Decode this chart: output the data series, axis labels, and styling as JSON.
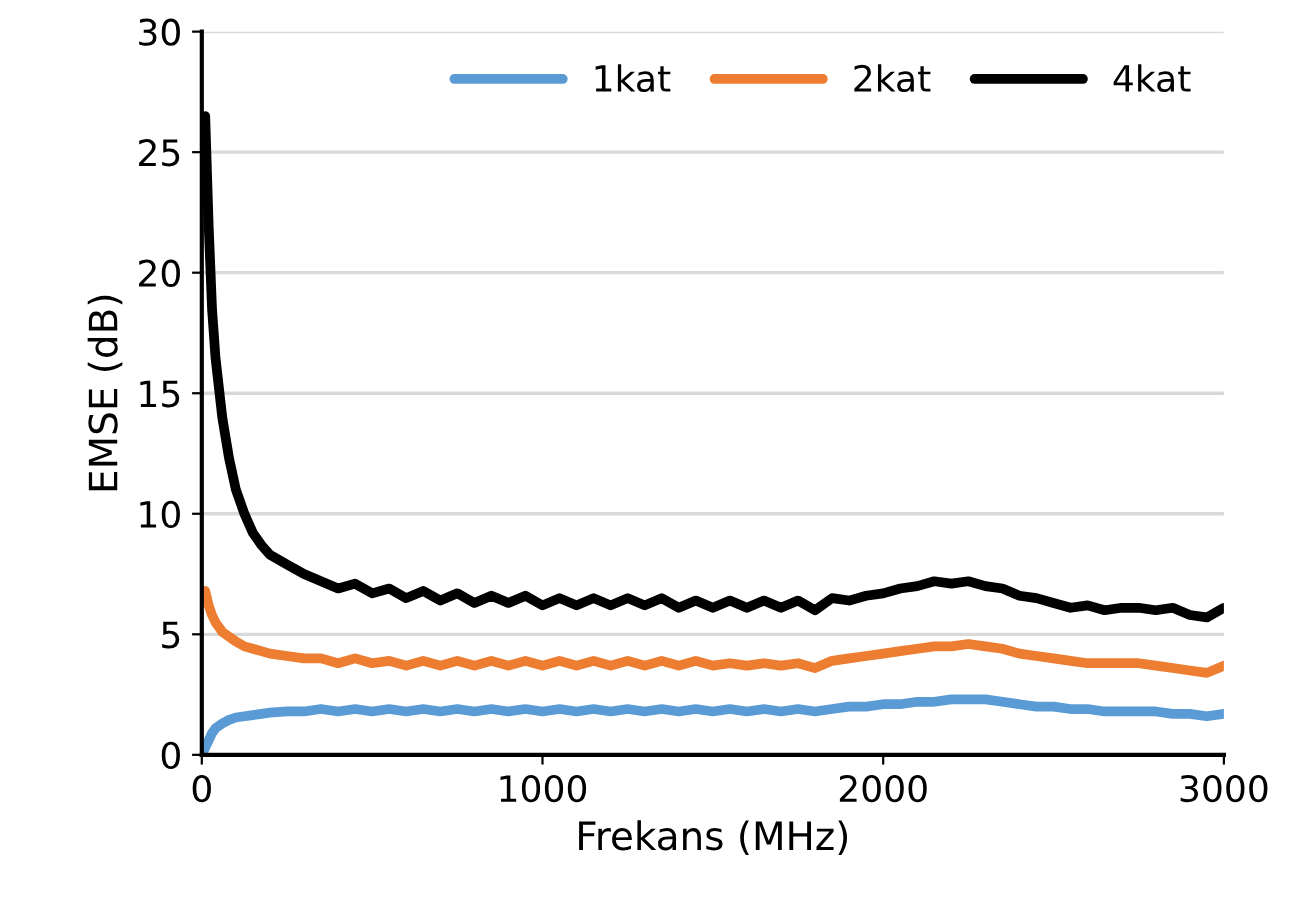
{
  "chart_data": {
    "type": "line",
    "xlabel": "Frekans (MHz)",
    "ylabel": "EMSE (dB)",
    "x": [
      0,
      10,
      20,
      30,
      40,
      60,
      80,
      100,
      125,
      150,
      175,
      200,
      250,
      300,
      350,
      400,
      450,
      500,
      550,
      600,
      650,
      700,
      750,
      800,
      850,
      900,
      950,
      1000,
      1050,
      1100,
      1150,
      1200,
      1250,
      1300,
      1350,
      1400,
      1450,
      1500,
      1550,
      1600,
      1650,
      1700,
      1750,
      1800,
      1850,
      1900,
      1950,
      2000,
      2050,
      2100,
      2150,
      2200,
      2250,
      2300,
      2350,
      2400,
      2450,
      2500,
      2550,
      2600,
      2650,
      2700,
      2750,
      2800,
      2850,
      2900,
      2950,
      3000
    ],
    "series": [
      {
        "name": "1kat",
        "color": "#5b9bd5",
        "values": [
          0,
          0.3,
          0.6,
          0.9,
          1.1,
          1.3,
          1.45,
          1.55,
          1.6,
          1.65,
          1.7,
          1.75,
          1.8,
          1.8,
          1.9,
          1.8,
          1.9,
          1.8,
          1.9,
          1.8,
          1.9,
          1.8,
          1.9,
          1.8,
          1.9,
          1.8,
          1.9,
          1.8,
          1.9,
          1.8,
          1.9,
          1.8,
          1.9,
          1.8,
          1.9,
          1.8,
          1.9,
          1.8,
          1.9,
          1.8,
          1.9,
          1.8,
          1.9,
          1.8,
          1.9,
          2.0,
          2.0,
          2.1,
          2.1,
          2.2,
          2.2,
          2.3,
          2.3,
          2.3,
          2.2,
          2.1,
          2.0,
          2.0,
          1.9,
          1.9,
          1.8,
          1.8,
          1.8,
          1.8,
          1.7,
          1.7,
          1.6,
          1.7
        ]
      },
      {
        "name": "2kat",
        "color": "#ed7d31",
        "values": [
          null,
          6.8,
          6.2,
          5.8,
          5.5,
          5.1,
          4.9,
          4.7,
          4.5,
          4.4,
          4.3,
          4.2,
          4.1,
          4.0,
          4.0,
          3.8,
          4.0,
          3.8,
          3.9,
          3.7,
          3.9,
          3.7,
          3.9,
          3.7,
          3.9,
          3.7,
          3.9,
          3.7,
          3.9,
          3.7,
          3.9,
          3.7,
          3.9,
          3.7,
          3.9,
          3.7,
          3.9,
          3.7,
          3.8,
          3.7,
          3.8,
          3.7,
          3.8,
          3.6,
          3.9,
          4.0,
          4.1,
          4.2,
          4.3,
          4.4,
          4.5,
          4.5,
          4.6,
          4.5,
          4.4,
          4.2,
          4.1,
          4.0,
          3.9,
          3.8,
          3.8,
          3.8,
          3.8,
          3.7,
          3.6,
          3.5,
          3.4,
          3.7
        ]
      },
      {
        "name": "4kat",
        "color": "#000000",
        "values": [
          null,
          26.5,
          22,
          18.5,
          16.5,
          14,
          12.3,
          11,
          10,
          9.2,
          8.7,
          8.3,
          7.9,
          7.5,
          7.2,
          6.9,
          7.1,
          6.7,
          6.9,
          6.5,
          6.8,
          6.4,
          6.7,
          6.3,
          6.6,
          6.3,
          6.6,
          6.2,
          6.5,
          6.2,
          6.5,
          6.2,
          6.5,
          6.2,
          6.5,
          6.1,
          6.4,
          6.1,
          6.4,
          6.1,
          6.4,
          6.1,
          6.4,
          6.0,
          6.5,
          6.4,
          6.6,
          6.7,
          6.9,
          7.0,
          7.2,
          7.1,
          7.2,
          7.0,
          6.9,
          6.6,
          6.5,
          6.3,
          6.1,
          6.2,
          6.0,
          6.1,
          6.1,
          6.0,
          6.1,
          5.8,
          5.7,
          6.1
        ]
      }
    ],
    "xlim": [
      0,
      3000
    ],
    "xticks": [
      0,
      1000,
      2000,
      3000
    ],
    "ylim": [
      0,
      30
    ],
    "yticks": [
      0,
      5,
      10,
      15,
      20,
      25,
      30
    ],
    "grid": "y",
    "legend": "top right",
    "marker": "none",
    "line_style": "solid"
  }
}
